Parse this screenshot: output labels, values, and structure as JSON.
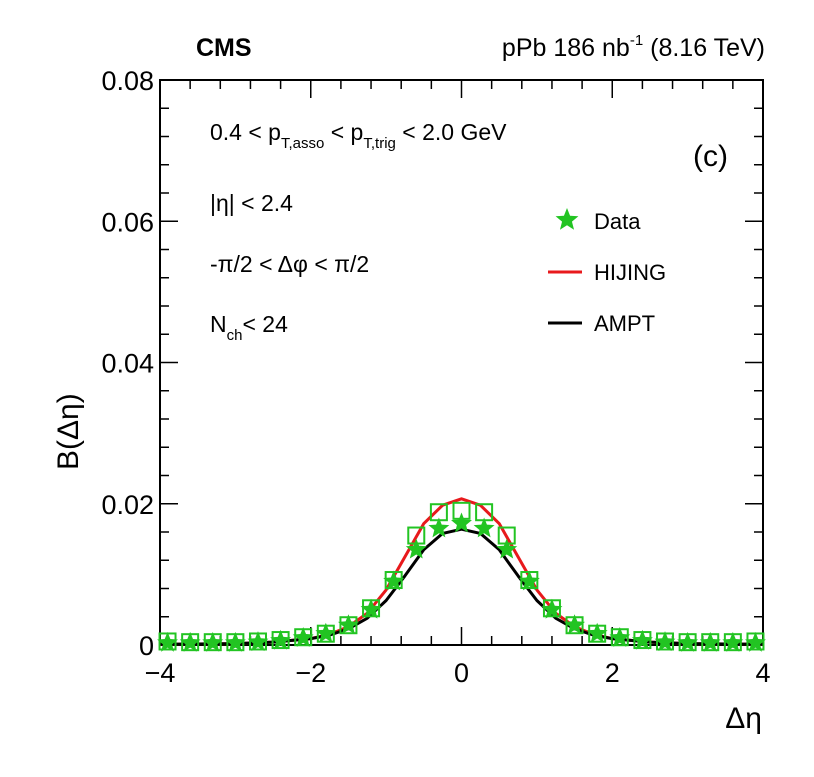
{
  "chart_data": {
    "type": "scatter",
    "experiment_label": "CMS",
    "run_label": {
      "prefix": "pPb 186 nb",
      "superscript": "-1",
      "suffix": " (8.16 TeV)"
    },
    "panel_label": "(c)",
    "xlabel": "Δη",
    "ylabel": "B(Δη)",
    "xlim": [
      -4,
      4
    ],
    "ylim": [
      0,
      0.08
    ],
    "x_ticks": [
      {
        "value": -4,
        "label": "−4"
      },
      {
        "value": -2,
        "label": "−2"
      },
      {
        "value": 0,
        "label": "0"
      },
      {
        "value": 2,
        "label": "2"
      },
      {
        "value": 4,
        "label": "4"
      }
    ],
    "y_ticks": [
      {
        "value": 0,
        "label": "0"
      },
      {
        "value": 0.02,
        "label": "0.02"
      },
      {
        "value": 0.04,
        "label": "0.04"
      },
      {
        "value": 0.06,
        "label": "0.06"
      },
      {
        "value": 0.08,
        "label": "0.08"
      }
    ],
    "annotations": {
      "pt_cut": {
        "a": "0.4 < p",
        "sub1": "T,asso",
        "b": " < p",
        "sub2": "T,trig",
        "c": " < 2.0 GeV"
      },
      "eta_cut": "|η| < 2.4",
      "phi_cut": "-π/2 < Δφ < π/2",
      "nch_cut": {
        "a": "N",
        "sub": "ch",
        "b": "< 24"
      }
    },
    "grid": false,
    "legend_position": "top-right",
    "legend": [
      {
        "name": "Data",
        "marker": "star",
        "color": "#22c422"
      },
      {
        "name": "HIJING",
        "marker": "line",
        "color": "#e8191c"
      },
      {
        "name": "AMPT",
        "marker": "line",
        "color": "#000000"
      }
    ],
    "series": [
      {
        "name": "Data",
        "x": [
          -3.9,
          -3.6,
          -3.3,
          -3.0,
          -2.7,
          -2.4,
          -2.1,
          -1.8,
          -1.5,
          -1.2,
          -0.9,
          -0.6,
          -0.3,
          0.0,
          0.3,
          0.6,
          0.9,
          1.2,
          1.5,
          1.8,
          2.1,
          2.4,
          2.7,
          3.0,
          3.3,
          3.6,
          3.9
        ],
        "y": [
          0.0003,
          0.0003,
          0.0003,
          0.0003,
          0.0004,
          0.0006,
          0.001,
          0.0016,
          0.0028,
          0.005,
          0.009,
          0.0135,
          0.0165,
          0.0172,
          0.0165,
          0.0135,
          0.009,
          0.005,
          0.0028,
          0.0016,
          0.001,
          0.0006,
          0.0004,
          0.0003,
          0.0003,
          0.0003,
          0.0003
        ],
        "syst_box_y": [
          0.0005,
          0.0004,
          0.0004,
          0.0004,
          0.0005,
          0.0007,
          0.0011,
          0.0016,
          0.0028,
          0.0052,
          0.0092,
          0.0155,
          0.0188,
          0.019,
          0.0188,
          0.0155,
          0.0092,
          0.0052,
          0.0028,
          0.0016,
          0.0011,
          0.0007,
          0.0005,
          0.0004,
          0.0004,
          0.0004,
          0.0005
        ],
        "color": "#22c422"
      },
      {
        "name": "HIJING",
        "x": [
          -4.0,
          -3.5,
          -3.0,
          -2.5,
          -2.0,
          -1.75,
          -1.5,
          -1.25,
          -1.0,
          -0.75,
          -0.5,
          -0.25,
          0.0,
          0.25,
          0.5,
          0.75,
          1.0,
          1.25,
          1.5,
          1.75,
          2.0,
          2.5,
          3.0,
          3.5,
          4.0
        ],
        "y": [
          0.0001,
          0.00015,
          0.0002,
          0.0004,
          0.0009,
          0.0015,
          0.0026,
          0.0045,
          0.0078,
          0.0125,
          0.0172,
          0.0198,
          0.0207,
          0.0198,
          0.0172,
          0.0125,
          0.0078,
          0.0045,
          0.0026,
          0.0015,
          0.0009,
          0.0004,
          0.0002,
          0.00015,
          0.0001
        ],
        "color": "#e8191c"
      },
      {
        "name": "AMPT",
        "x": [
          -4.0,
          -3.5,
          -3.0,
          -2.5,
          -2.0,
          -1.75,
          -1.5,
          -1.25,
          -1.0,
          -0.75,
          -0.5,
          -0.25,
          0.0,
          0.25,
          0.5,
          0.75,
          1.0,
          1.25,
          1.5,
          1.75,
          2.0,
          2.5,
          3.0,
          3.5,
          4.0
        ],
        "y": [
          0.0001,
          0.00015,
          0.0002,
          0.0004,
          0.0009,
          0.0014,
          0.0023,
          0.0038,
          0.0063,
          0.0098,
          0.0135,
          0.0158,
          0.0164,
          0.0158,
          0.0135,
          0.0098,
          0.0063,
          0.0038,
          0.0023,
          0.0014,
          0.0009,
          0.0004,
          0.0002,
          0.00015,
          0.0001
        ],
        "color": "#000000"
      }
    ]
  }
}
